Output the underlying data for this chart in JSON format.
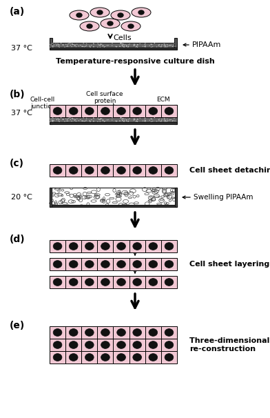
{
  "bg_color": "#ffffff",
  "cell_fill": "#f2c8d4",
  "cell_edge": "#000000",
  "nucleus_fill": "#111111",
  "dish_gray": "#888888",
  "dish_dark": "#444444",
  "pipaam_color": "#aaaaaa",
  "swelling_color": "#dddddd",
  "label_a": "(a)",
  "label_b": "(b)",
  "label_c": "(c)",
  "label_d": "(d)",
  "label_e": "(e)",
  "temp_a": "37 °C",
  "temp_b": "37 °C",
  "temp_c": "20 °C",
  "text_cells": "Cells",
  "text_pipaam": "PIPAAm",
  "text_dish": "Temperature-responsive culture dish",
  "text_cj": "Cell-cell\njunction",
  "text_csp": "Cell surface\nprotein",
  "text_ecm": "ECM",
  "text_csd": "Cell sheet detaching",
  "text_swelling": "Swelling PIPAAm",
  "text_csl": "Cell sheet layering",
  "text_3d": "Three-dimensional tissue\nre-construction"
}
